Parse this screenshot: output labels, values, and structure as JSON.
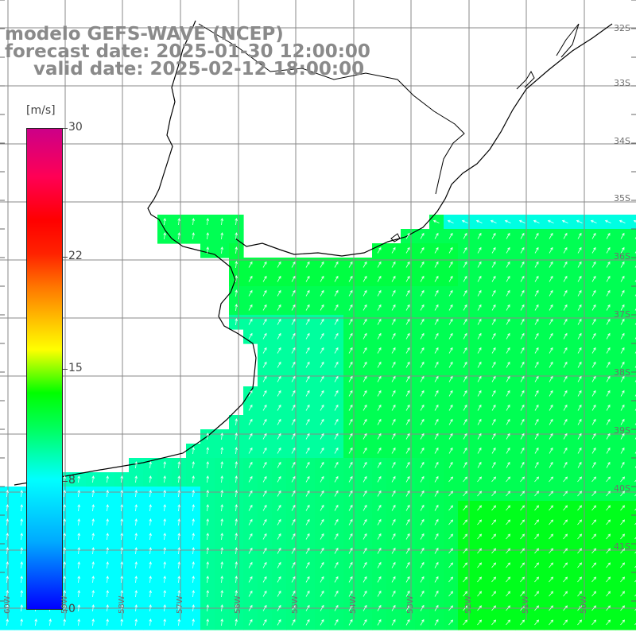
{
  "header": {
    "model": "modelo GEFS-WAVE (NCEP)",
    "forecast": "forecast date: 2025-01-30 12:00:00",
    "valid": "valid date: 2025-02-12 18:00:00"
  },
  "colorbar": {
    "unit": "[m/s]",
    "ticks": [
      {
        "label": "30",
        "value": 30
      },
      {
        "label": "22",
        "value": 22
      },
      {
        "label": "15",
        "value": 15
      },
      {
        "label": "8",
        "value": 8
      },
      {
        "label": "0",
        "value": 0
      }
    ],
    "colors": [
      "#0000ff",
      "#00ffff",
      "#00ff00",
      "#ffff00",
      "#ff0000",
      "#cc0088"
    ]
  },
  "axes": {
    "lat_labels": [
      "32S",
      "33S",
      "34S",
      "35S",
      "36S",
      "37S",
      "38S",
      "39S",
      "40S",
      "41S"
    ],
    "lon_labels": [
      "60W",
      "59W",
      "58W",
      "57W",
      "56W",
      "55W",
      "54W",
      "53W",
      "52W",
      "51W",
      "50W"
    ]
  },
  "colors": {
    "ocean_base": "#33ff66",
    "land": "#ffffff",
    "grid": "#888888",
    "coast": "#000000",
    "arrows": "#ffffff"
  }
}
